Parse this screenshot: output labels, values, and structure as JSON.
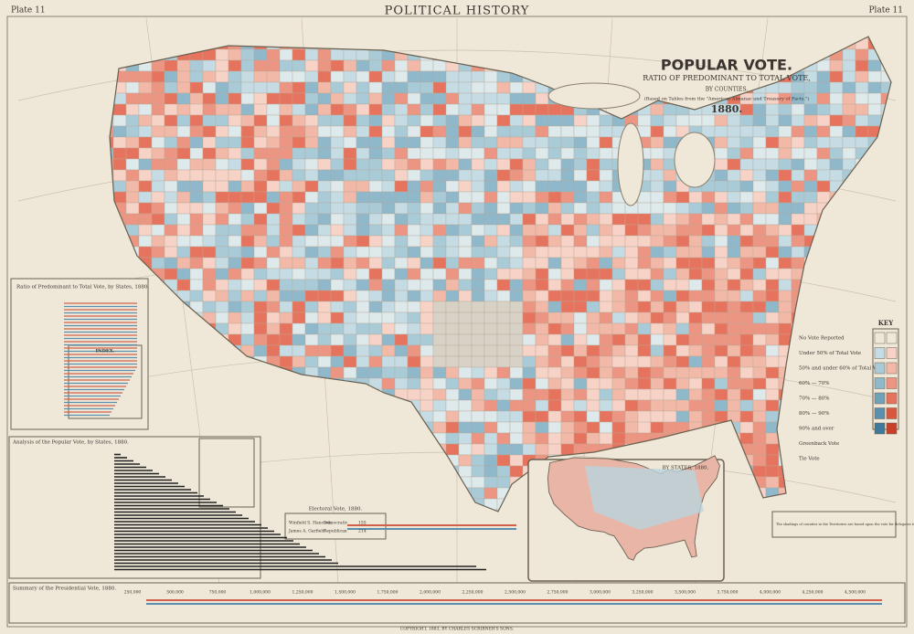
{
  "header": {
    "left_plate": "Plate 11",
    "title": "POLITICAL HISTORY",
    "right_plate": "Plate 11"
  },
  "map_title": {
    "title": "POPULAR VOTE.",
    "subtitle": "RATIO OF PREDOMINANT TO TOTAL VOTE,",
    "by_counties": "BY COUNTIES.",
    "note": "(Based on Tables from the \"American Almanac and Treasury of Facts.\")",
    "year": "1880."
  },
  "key": {
    "heading": "KEY",
    "rows": [
      "No Vote Reported",
      "Under 50% of Total Vote",
      "50% and under 60% of Total Vote",
      "60% — 70%",
      "70% — 80%",
      "80% — 90%",
      "90% and over",
      "Greenback Vote",
      "Tie Vote"
    ]
  },
  "panels": {
    "ratio_title": "Ratio of Predominant to Total Vote, by States, 1880.",
    "index": "INDEX.",
    "analysis_title": "Analysis of the Popular Vote, by States, 1880.",
    "electoral_title": "Electoral Vote, 1880.",
    "electoral_rows": [
      [
        "Winfield S. Hancock",
        "Democratic",
        "155"
      ],
      [
        "James A. Garfield",
        "Republican",
        "214"
      ]
    ],
    "summary_title": "Summary of the Presidential Vote, 1880."
  },
  "inset": {
    "title": "BY STATES, 1880.",
    "note": "The shadings of counties in the Territories are based upon the vote for delegates to Congress."
  },
  "scale": [
    "250,000",
    "500,000",
    "750,000",
    "1,000,000",
    "1,250,000",
    "1,500,000",
    "1,750,000",
    "2,000,000",
    "2,250,000",
    "2,500,000",
    "2,750,000",
    "3,000,000",
    "3,250,000",
    "3,500,000",
    "3,750,000",
    "4,000,000",
    "4,250,000",
    "4,500,000"
  ],
  "footer": "COPYRIGHT, 1883, BY CHARLES SCRIBNER'S SONS."
}
